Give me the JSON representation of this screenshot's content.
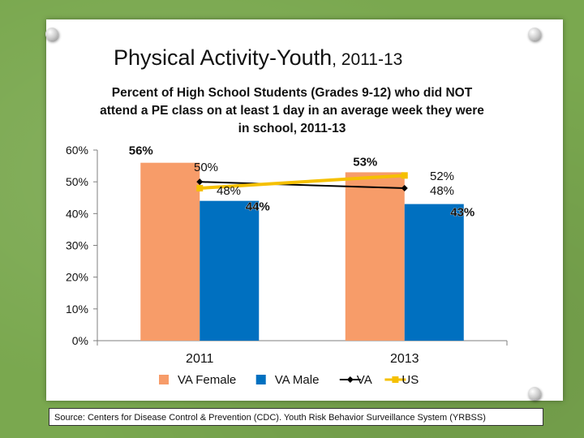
{
  "slide": {
    "title_main": "Physical Activity-Youth",
    "title_sub": ", 2011-13",
    "source": "Source: Centers for Disease Control & Prevention (CDC). Youth Risk Behavior Surveillance System (YRBSS)"
  },
  "chart_data": {
    "type": "bar",
    "title": "Percent of High School Students (Grades 9-12) who did NOT attend a PE class on at least 1 day in an average week they were in school, 2011-13",
    "categories": [
      "2011",
      "2013"
    ],
    "ylim": [
      0,
      60
    ],
    "yticks": [
      0,
      10,
      20,
      30,
      40,
      50,
      60
    ],
    "ytick_labels": [
      "0%",
      "10%",
      "20%",
      "30%",
      "40%",
      "50%",
      "60%"
    ],
    "series": [
      {
        "name": "VA Female",
        "kind": "bar",
        "color": "#f79c69",
        "values": [
          56,
          53
        ],
        "labels": [
          "56%",
          "53%"
        ]
      },
      {
        "name": "VA Male",
        "kind": "bar",
        "color": "#0070c0",
        "values": [
          44,
          43
        ],
        "labels": [
          "44%",
          "43%"
        ]
      },
      {
        "name": "VA",
        "kind": "line",
        "color": "#000000",
        "marker": "diamond",
        "values": [
          50,
          48
        ],
        "labels": [
          "50%",
          "48%"
        ]
      },
      {
        "name": "US",
        "kind": "line",
        "color": "#f5c000",
        "marker": "square",
        "values": [
          48,
          52
        ],
        "labels": [
          "48%",
          "52%"
        ]
      }
    ],
    "legend_position": "bottom"
  }
}
